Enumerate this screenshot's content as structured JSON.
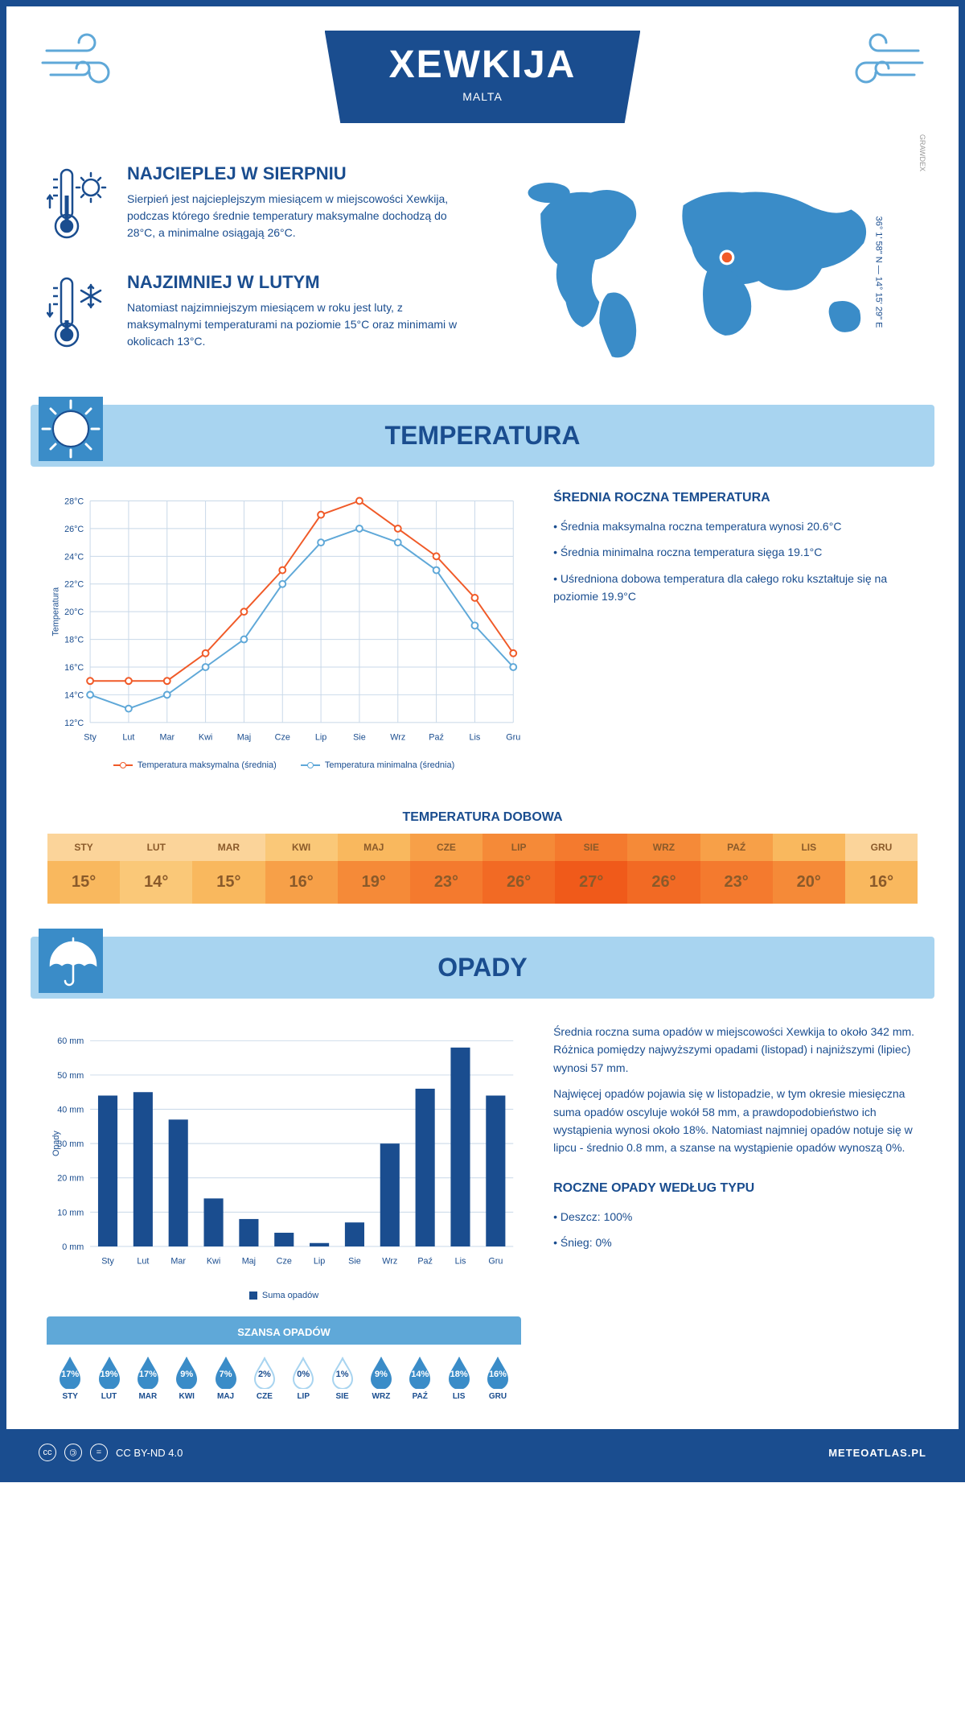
{
  "header": {
    "city": "XEWKIJA",
    "country": "MALTA"
  },
  "coords": "36° 1' 58\" N — 14° 15' 29\" E",
  "brand_small": "GRAWDEX",
  "warmest": {
    "title": "NAJCIEPLEJ W SIERPNIU",
    "text": "Sierpień jest najcieplejszym miesiącem w miejscowości Xewkija, podczas którego średnie temperatury maksymalne dochodzą do 28°C, a minimalne osiągają 26°C."
  },
  "coldest": {
    "title": "NAJZIMNIEJ W LUTYM",
    "text": "Natomiast najzimniejszym miesiącem w roku jest luty, z maksymalnymi temperaturami na poziomie 15°C oraz minimami w okolicach 13°C."
  },
  "temperature": {
    "section_title": "TEMPERATURA",
    "chart": {
      "type": "line",
      "months": [
        "Sty",
        "Lut",
        "Mar",
        "Kwi",
        "Maj",
        "Cze",
        "Lip",
        "Sie",
        "Wrz",
        "Paź",
        "Lis",
        "Gru"
      ],
      "y_label": "Temperatura",
      "ylim": [
        12,
        28
      ],
      "ytick_step": 2,
      "y_suffix": "°C",
      "series": [
        {
          "name": "Temperatura maksymalna (średnia)",
          "color": "#f05a28",
          "values": [
            15,
            15,
            15,
            17,
            20,
            23,
            27,
            28,
            26,
            24,
            21,
            17
          ]
        },
        {
          "name": "Temperatura minimalna (średnia)",
          "color": "#5fa8d8",
          "values": [
            14,
            13,
            14,
            16,
            18,
            22,
            25,
            26,
            25,
            23,
            19,
            16
          ]
        }
      ],
      "grid_color": "#c8d8e8",
      "background": "#ffffff",
      "label_fontsize": 11
    },
    "annual": {
      "title": "ŚREDNIA ROCZNA TEMPERATURA",
      "items": [
        "Średnia maksymalna roczna temperatura wynosi 20.6°C",
        "Średnia minimalna roczna temperatura sięga 19.1°C",
        "Uśredniona dobowa temperatura dla całego roku kształtuje się na poziomie 19.9°C"
      ]
    },
    "daily": {
      "title": "TEMPERATURA DOBOWA",
      "months": [
        "STY",
        "LUT",
        "MAR",
        "KWI",
        "MAJ",
        "CZE",
        "LIP",
        "SIE",
        "WRZ",
        "PAŹ",
        "LIS",
        "GRU"
      ],
      "values": [
        "15°",
        "14°",
        "15°",
        "16°",
        "19°",
        "23°",
        "26°",
        "27°",
        "26°",
        "23°",
        "20°",
        "16°"
      ],
      "header_colors": [
        "#fbd49a",
        "#fbd49a",
        "#fbd49a",
        "#fac878",
        "#f9b85e",
        "#f7a048",
        "#f58a38",
        "#f47a2e",
        "#f58a38",
        "#f7a048",
        "#f9b85e",
        "#fbd49a"
      ],
      "value_colors": [
        "#f9b85e",
        "#fac878",
        "#f9b85e",
        "#f7a048",
        "#f58a38",
        "#f47a2e",
        "#f26a24",
        "#f05a1a",
        "#f26a24",
        "#f47a2e",
        "#f58a38",
        "#f9b85e"
      ],
      "text_color": "#8a5a2a"
    }
  },
  "precipitation": {
    "section_title": "OPADY",
    "chart": {
      "type": "bar",
      "months": [
        "Sty",
        "Lut",
        "Mar",
        "Kwi",
        "Maj",
        "Cze",
        "Lip",
        "Sie",
        "Wrz",
        "Paź",
        "Lis",
        "Gru"
      ],
      "y_label": "Opady",
      "ylim": [
        0,
        60
      ],
      "ytick_step": 10,
      "y_suffix": " mm",
      "values": [
        44,
        45,
        37,
        14,
        8,
        4,
        1,
        7,
        30,
        46,
        58,
        44
      ],
      "bar_color": "#1a4d8f",
      "grid_color": "#c8d8e8",
      "legend": "Suma opadów"
    },
    "text1": "Średnia roczna suma opadów w miejscowości Xewkija to około 342 mm. Różnica pomiędzy najwyższymi opadami (listopad) i najniższymi (lipiec) wynosi 57 mm.",
    "text2": "Najwięcej opadów pojawia się w listopadzie, w tym okresie miesięczna suma opadów oscyluje wokół 58 mm, a prawdopodobieństwo ich wystąpienia wynosi około 18%. Natomiast najmniej opadów notuje się w lipcu - średnio 0.8 mm, a szanse na wystąpienie opadów wynoszą 0%.",
    "chance": {
      "title": "SZANSA OPADÓW",
      "months": [
        "STY",
        "LUT",
        "MAR",
        "KWI",
        "MAJ",
        "CZE",
        "LIP",
        "SIE",
        "WRZ",
        "PAŹ",
        "LIS",
        "GRU"
      ],
      "values": [
        17,
        19,
        17,
        9,
        7,
        2,
        0,
        1,
        9,
        14,
        18,
        16
      ],
      "fill_threshold": 5,
      "fill_color": "#3a8cc8",
      "empty_stroke": "#a8d4f0"
    },
    "by_type": {
      "title": "ROCZNE OPADY WEDŁUG TYPU",
      "items": [
        "Deszcz: 100%",
        "Śnieg: 0%"
      ]
    }
  },
  "footer": {
    "license": "CC BY-ND 4.0",
    "site": "METEOATLAS.PL"
  },
  "colors": {
    "primary": "#1a4d8f",
    "light_blue": "#a8d4f0",
    "mid_blue": "#5fa8d8"
  }
}
